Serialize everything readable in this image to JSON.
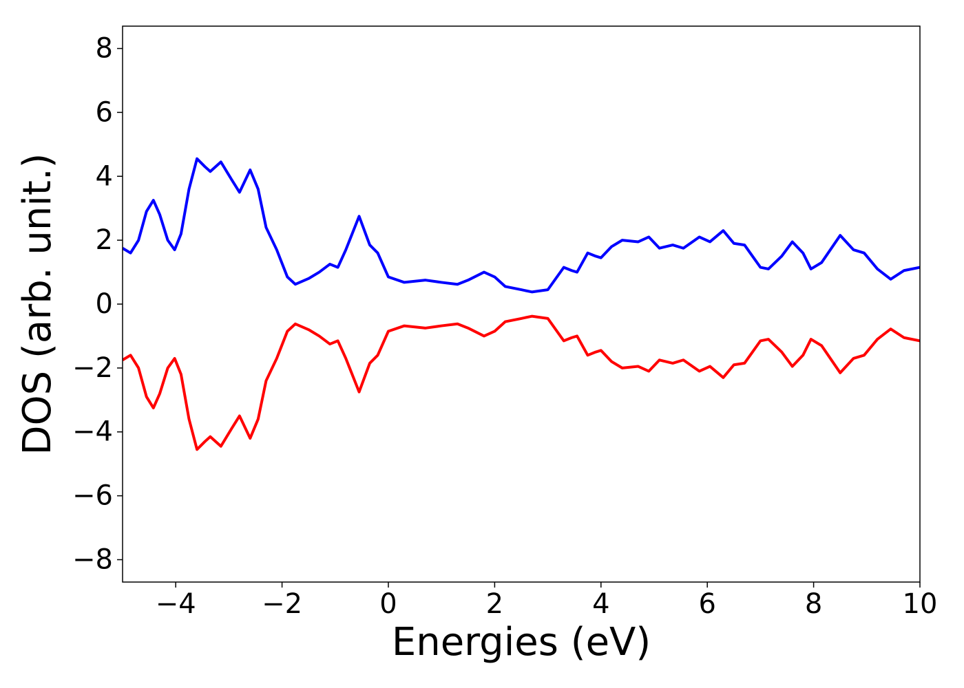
{
  "chart_data": {
    "type": "line",
    "xlabel": "Energies (eV)",
    "ylabel": "DOS (arb. unit.)",
    "x": [
      -5,
      -4.85,
      -4.7,
      -4.55,
      -4.42,
      -4.3,
      -4.15,
      -4.02,
      -3.9,
      -3.75,
      -3.6,
      -3.45,
      -3.35,
      -3.15,
      -2.95,
      -2.8,
      -2.6,
      -2.45,
      -2.3,
      -2.1,
      -1.9,
      -1.75,
      -1.5,
      -1.3,
      -1.1,
      -0.95,
      -0.8,
      -0.55,
      -0.35,
      -0.2,
      0,
      0.3,
      0.7,
      1.0,
      1.3,
      1.5,
      1.8,
      2.0,
      2.2,
      2.5,
      2.7,
      3.0,
      3.15,
      3.3,
      3.45,
      3.55,
      3.75,
      3.9,
      4.0,
      4.2,
      4.4,
      4.7,
      4.9,
      5.1,
      5.35,
      5.55,
      5.85,
      6.05,
      6.3,
      6.5,
      6.7,
      7.0,
      7.15,
      7.4,
      7.6,
      7.8,
      7.95,
      8.15,
      8.5,
      8.75,
      8.95,
      9.2,
      9.45,
      9.7,
      10
    ],
    "series": [
      {
        "color": "#0000ff",
        "values": [
          1.75,
          1.6,
          2.0,
          2.9,
          3.25,
          2.8,
          2.0,
          1.7,
          2.2,
          3.6,
          4.55,
          4.3,
          4.15,
          4.45,
          3.9,
          3.5,
          4.2,
          3.6,
          2.4,
          1.7,
          0.85,
          0.62,
          0.8,
          1.0,
          1.25,
          1.15,
          1.7,
          2.75,
          1.85,
          1.6,
          0.85,
          0.68,
          0.75,
          0.68,
          0.62,
          0.75,
          1.0,
          0.85,
          0.55,
          0.45,
          0.38,
          0.45,
          0.8,
          1.15,
          1.05,
          1.0,
          1.6,
          1.5,
          1.45,
          1.8,
          2.0,
          1.95,
          2.1,
          1.75,
          1.85,
          1.75,
          2.1,
          1.95,
          2.3,
          1.9,
          1.85,
          1.15,
          1.1,
          1.5,
          1.95,
          1.6,
          1.1,
          1.3,
          2.15,
          1.7,
          1.6,
          1.1,
          0.78,
          1.05,
          1.15
        ]
      },
      {
        "color": "#ff0000",
        "values": [
          -1.75,
          -1.6,
          -2.0,
          -2.9,
          -3.25,
          -2.8,
          -2.0,
          -1.7,
          -2.2,
          -3.6,
          -4.55,
          -4.3,
          -4.15,
          -4.45,
          -3.9,
          -3.5,
          -4.2,
          -3.6,
          -2.4,
          -1.7,
          -0.85,
          -0.62,
          -0.8,
          -1.0,
          -1.25,
          -1.15,
          -1.7,
          -2.75,
          -1.85,
          -1.6,
          -0.85,
          -0.68,
          -0.75,
          -0.68,
          -0.62,
          -0.75,
          -1.0,
          -0.85,
          -0.55,
          -0.45,
          -0.38,
          -0.45,
          -0.8,
          -1.15,
          -1.05,
          -1.0,
          -1.6,
          -1.5,
          -1.45,
          -1.8,
          -2.0,
          -1.95,
          -2.1,
          -1.75,
          -1.85,
          -1.75,
          -2.1,
          -1.95,
          -2.3,
          -1.9,
          -1.85,
          -1.15,
          -1.1,
          -1.5,
          -1.95,
          -1.6,
          -1.1,
          -1.3,
          -2.15,
          -1.7,
          -1.6,
          -1.1,
          -0.78,
          -1.05,
          -1.15
        ]
      }
    ],
    "xlim": [
      -5,
      10
    ],
    "xticks": [
      {
        "value": -4,
        "label": "−4"
      },
      {
        "value": -2,
        "label": "−2"
      },
      0,
      2,
      4,
      6,
      8,
      10
    ],
    "ylim": [
      -8.7,
      8.7
    ],
    "yticks": [
      {
        "value": -8,
        "label": "−8"
      },
      {
        "value": -6,
        "label": "−6"
      },
      {
        "value": -4,
        "label": "−4"
      },
      {
        "value": -2,
        "label": "−2"
      },
      0,
      2,
      4,
      6,
      8
    ]
  }
}
